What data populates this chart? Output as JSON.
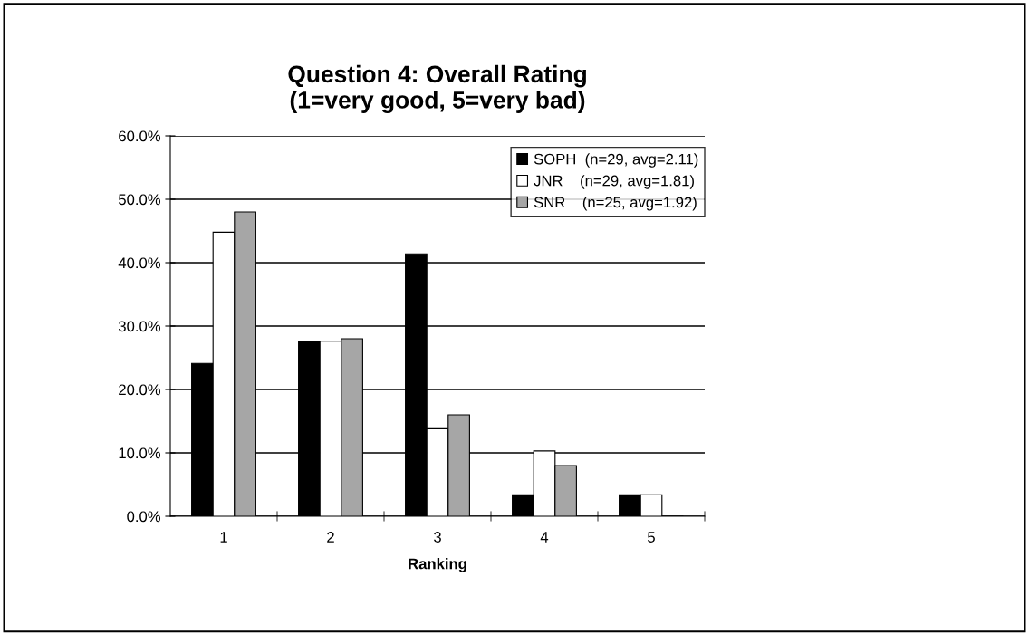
{
  "chart_data": {
    "type": "bar",
    "title": "Question 4: Overall Rating\n(1=very good, 5=very bad)",
    "xlabel": "Ranking",
    "categories": [
      "1",
      "2",
      "3",
      "4",
      "5"
    ],
    "series": [
      {
        "name": "SOPH  (n=29, avg=2.11)",
        "color": "#000000",
        "values": [
          24.1,
          27.6,
          41.4,
          3.4,
          3.4
        ]
      },
      {
        "name": "JNR    (n=29, avg=1.81)",
        "color": "#ffffff",
        "values": [
          44.8,
          27.6,
          13.8,
          10.3,
          3.4
        ]
      },
      {
        "name": "SNR    (n=25, avg=1.92)",
        "color": "#a6a6a6",
        "values": [
          48.0,
          28.0,
          16.0,
          8.0,
          0
        ]
      }
    ],
    "ylim": [
      0,
      60
    ],
    "yticks": [
      {
        "value": 0,
        "label": "0.0%"
      },
      {
        "value": 10,
        "label": "10.0%"
      },
      {
        "value": 20,
        "label": "20.0%"
      },
      {
        "value": 30,
        "label": "30.0%"
      },
      {
        "value": 40,
        "label": "40.0%"
      },
      {
        "value": 50,
        "label": "50.0%"
      },
      {
        "value": 60,
        "label": "60.0%"
      }
    ],
    "grid": "y",
    "legend": "top right"
  }
}
